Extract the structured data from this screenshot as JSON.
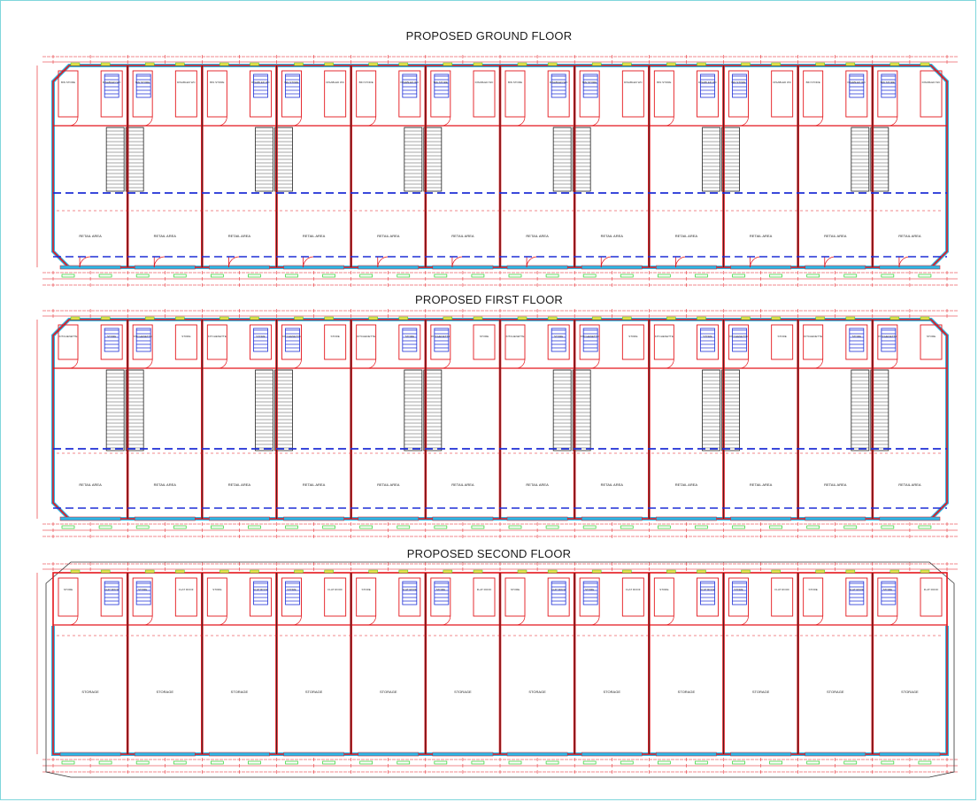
{
  "floors": [
    {
      "key": "ground",
      "title": "PROPOSED GROUND FLOOR",
      "unit_labels": [
        "RETAIL AREA",
        "RETAIL AREA",
        "RETAIL AREA",
        "RETAIL AREA",
        "RETAIL AREA",
        "RETAIL AREA",
        "RETAIL AREA",
        "RETAIL AREA",
        "RETAIL AREA",
        "RETAIL AREA",
        "RETAIL AREA",
        "RETAIL AREA"
      ],
      "room_labels": [
        "BIN STORE",
        "DISABLED WC",
        "LOBBY"
      ]
    },
    {
      "key": "first",
      "title": "PROPOSED FIRST FLOOR",
      "unit_labels": [
        "RETAIL AREA",
        "RETAIL AREA",
        "RETAIL AREA",
        "RETAIL AREA",
        "RETAIL AREA",
        "RETAIL AREA",
        "RETAIL AREA",
        "RETAIL AREA",
        "RETAIL AREA",
        "RETAIL AREA",
        "RETAIL AREA",
        "RETAIL AREA"
      ],
      "room_labels": [
        "KITCHENETTE",
        "STORE"
      ]
    },
    {
      "key": "second",
      "title": "PROPOSED SECOND FLOOR",
      "unit_labels": [
        "STORAGE",
        "STORAGE",
        "STORAGE",
        "STORAGE",
        "STORAGE",
        "STORAGE",
        "STORAGE",
        "STORAGE",
        "STORAGE",
        "STORAGE",
        "STORAGE",
        "STORAGE"
      ],
      "room_labels": [
        "STORE",
        "FLAT ROOF"
      ]
    }
  ],
  "colors": {
    "wall": "#e4161c",
    "partition": "#222222",
    "glazing": "#2fb6e4",
    "beam": "#1e2fd6",
    "dimension": "#e4161c",
    "green_marks": "#2fd12f",
    "stairs": "#1e2fd6",
    "frame": "#7fd6dc"
  }
}
